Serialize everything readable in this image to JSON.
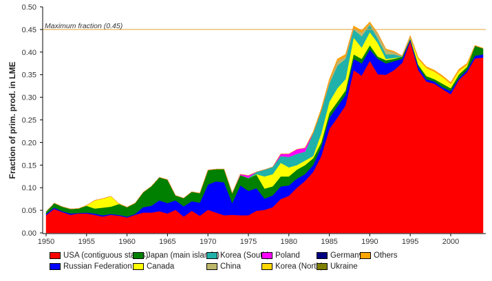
{
  "chart_data": {
    "type": "area",
    "stacked": true,
    "ylabel": "Fraction of prim. prod. in LME",
    "xlabel": "",
    "xlim": [
      1950,
      2004
    ],
    "ylim": [
      0,
      0.5
    ],
    "yticks": [
      "0.00",
      "0.05",
      "0.10",
      "0.15",
      "0.20",
      "0.25",
      "0.30",
      "0.35",
      "0.40",
      "0.45",
      "0.50"
    ],
    "xticks": [
      "1950",
      "1955",
      "1960",
      "1965",
      "1970",
      "1975",
      "1980",
      "1985",
      "1990",
      "1995",
      "2000"
    ],
    "grid": false,
    "legend_position": "bottom",
    "reference_line": {
      "value": 0.45,
      "label": "Maximum fraction (0.45)",
      "color": "#e0a030"
    },
    "x": [
      1950,
      1951,
      1952,
      1953,
      1954,
      1955,
      1956,
      1957,
      1958,
      1959,
      1960,
      1961,
      1962,
      1963,
      1964,
      1965,
      1966,
      1967,
      1968,
      1969,
      1970,
      1971,
      1972,
      1973,
      1974,
      1975,
      1976,
      1977,
      1978,
      1979,
      1980,
      1981,
      1982,
      1983,
      1984,
      1985,
      1986,
      1987,
      1988,
      1989,
      1990,
      1991,
      1992,
      1993,
      1994,
      1995,
      1996,
      1997,
      1998,
      1999,
      2000,
      2001,
      2002,
      2003,
      2004
    ],
    "series": [
      {
        "name": "USA (contiguous states)",
        "color": "#ff0000",
        "values": [
          0.039,
          0.053,
          0.046,
          0.04,
          0.043,
          0.043,
          0.04,
          0.036,
          0.04,
          0.038,
          0.034,
          0.04,
          0.045,
          0.045,
          0.048,
          0.043,
          0.051,
          0.036,
          0.049,
          0.038,
          0.051,
          0.045,
          0.039,
          0.04,
          0.039,
          0.039,
          0.049,
          0.051,
          0.057,
          0.075,
          0.082,
          0.1,
          0.115,
          0.135,
          0.17,
          0.23,
          0.255,
          0.282,
          0.36,
          0.348,
          0.381,
          0.351,
          0.35,
          0.36,
          0.376,
          0.424,
          0.36,
          0.335,
          0.33,
          0.318,
          0.307,
          0.338,
          0.355,
          0.386,
          0.388
        ]
      },
      {
        "name": "Russian Federation",
        "color": "#0000ff",
        "values": [
          0.003,
          0.003,
          0.002,
          0.003,
          0.001,
          0.002,
          0.003,
          0.003,
          0.002,
          0.002,
          0.002,
          0.002,
          0.012,
          0.015,
          0.024,
          0.023,
          0.021,
          0.023,
          0.021,
          0.029,
          0.056,
          0.069,
          0.073,
          0.026,
          0.066,
          0.054,
          0.05,
          0.025,
          0.026,
          0.028,
          0.023,
          0.02,
          0.015,
          0.015,
          0.02,
          0.025,
          0.025,
          0.023,
          0.025,
          0.027,
          0.025,
          0.034,
          0.025,
          0.02,
          0.009,
          0.004,
          0.008,
          0.005,
          0.005,
          0.004,
          0.007,
          0.004,
          0.005,
          0.006,
          0.007
        ]
      },
      {
        "name": "Japan (main islands)",
        "color": "#008000",
        "values": [
          0.005,
          0.01,
          0.01,
          0.01,
          0.01,
          0.015,
          0.011,
          0.017,
          0.016,
          0.024,
          0.021,
          0.024,
          0.033,
          0.043,
          0.051,
          0.052,
          0.011,
          0.018,
          0.021,
          0.021,
          0.032,
          0.027,
          0.029,
          0.022,
          0.023,
          0.028,
          0.03,
          0.022,
          0.02,
          0.022,
          0.02,
          0.02,
          0.02,
          0.015,
          0.01,
          0.01,
          0.01,
          0.01,
          0.01,
          0.01,
          0.009,
          0.005,
          0.007,
          0.005,
          0.005,
          0.002,
          0.004,
          0.007,
          0.005,
          0.008,
          0.006,
          0.008,
          0.007,
          0.022,
          0.013
        ]
      },
      {
        "name": "Canada",
        "color": "#ffff00",
        "values": [
          0,
          0,
          0,
          0,
          0,
          0.001,
          0.018,
          0.02,
          0.023,
          0.001,
          0,
          0,
          0,
          0,
          0,
          0,
          0,
          0,
          0,
          0,
          0,
          0,
          0,
          0,
          0,
          0,
          0.001,
          0.027,
          0.027,
          0.03,
          0.02,
          0.01,
          0.01,
          0.005,
          0.02,
          0.025,
          0.03,
          0.025,
          0.037,
          0.025,
          0.029,
          0.03,
          0.003,
          0.002,
          0,
          0.002,
          0.013,
          0.018,
          0.017,
          0.015,
          0.01,
          0.008,
          0.005,
          0,
          0
        ]
      },
      {
        "name": "Korea (South)",
        "color": "#20b2aa",
        "values": [
          0,
          0,
          0,
          0,
          0,
          0,
          0,
          0,
          0,
          0,
          0,
          0,
          0,
          0,
          0,
          0,
          0,
          0,
          0,
          0,
          0,
          0,
          0,
          0,
          0,
          0.001,
          0.005,
          0.015,
          0.016,
          0.015,
          0.023,
          0.025,
          0.02,
          0.051,
          0.05,
          0.04,
          0.05,
          0.045,
          0.018,
          0.025,
          0.016,
          0.01,
          0.01,
          0.008,
          0,
          0,
          0,
          0,
          0,
          0,
          0,
          0,
          0,
          0,
          0
        ]
      },
      {
        "name": "China",
        "color": "#bdb76b",
        "values": [
          0,
          0,
          0,
          0,
          0,
          0,
          0,
          0,
          0,
          0,
          0,
          0,
          0,
          0,
          0,
          0,
          0,
          0,
          0,
          0,
          0,
          0,
          0,
          0,
          0,
          0,
          0,
          0,
          0,
          0,
          0,
          0,
          0,
          0,
          0,
          0.005,
          0.01,
          0.005,
          0.004,
          0.008,
          0.004,
          0.01,
          0.01,
          0.005,
          0.002,
          0.003,
          0,
          0,
          0,
          0,
          0,
          0,
          0,
          0,
          0
        ]
      },
      {
        "name": "Poland",
        "color": "#ff00ff",
        "values": [
          0,
          0,
          0,
          0,
          0,
          0,
          0,
          0,
          0,
          0,
          0,
          0,
          0,
          0,
          0,
          0,
          0,
          0,
          0,
          0,
          0,
          0,
          0,
          0,
          0.002,
          0.005,
          0,
          0,
          0,
          0.005,
          0.007,
          0.01,
          0.008,
          0,
          0,
          0,
          0,
          0,
          0,
          0,
          0,
          0,
          0,
          0,
          0,
          0,
          0,
          0,
          0,
          0,
          0,
          0,
          0,
          0,
          0
        ]
      },
      {
        "name": "Korea (North)",
        "color": "#ffd700",
        "values": [
          0,
          0,
          0,
          0,
          0,
          0,
          0,
          0,
          0,
          0,
          0,
          0,
          0,
          0,
          0,
          0,
          0,
          0,
          0,
          0,
          0,
          0,
          0,
          0,
          0,
          0,
          0,
          0,
          0,
          0,
          0,
          0,
          0,
          0,
          0,
          0,
          0,
          0,
          0,
          0,
          0,
          0,
          0,
          0,
          0,
          0,
          0,
          0,
          0,
          0,
          0,
          0,
          0,
          0,
          0
        ]
      },
      {
        "name": "Germany",
        "color": "#000080",
        "values": [
          0,
          0,
          0,
          0,
          0,
          0,
          0,
          0,
          0,
          0,
          0,
          0,
          0,
          0,
          0,
          0,
          0,
          0,
          0,
          0,
          0,
          0,
          0,
          0,
          0,
          0,
          0,
          0,
          0,
          0,
          0,
          0,
          0,
          0,
          0,
          0,
          0,
          0,
          0,
          0,
          0,
          0,
          0,
          0,
          0,
          0,
          0,
          0,
          0,
          0,
          0,
          0,
          0,
          0,
          0
        ]
      },
      {
        "name": "Ukraine",
        "color": "#808000",
        "values": [
          0,
          0,
          0,
          0,
          0,
          0,
          0,
          0,
          0,
          0,
          0,
          0,
          0,
          0,
          0,
          0,
          0,
          0,
          0,
          0,
          0,
          0,
          0,
          0,
          0,
          0,
          0,
          0,
          0,
          0,
          0,
          0,
          0,
          0,
          0,
          0,
          0,
          0,
          0,
          0,
          0,
          0,
          0,
          0,
          0,
          0,
          0,
          0,
          0,
          0,
          0,
          0,
          0,
          0,
          0
        ]
      },
      {
        "name": "Others",
        "color": "#ffa500",
        "values": [
          0,
          0,
          0,
          0,
          0,
          0,
          0,
          0,
          0,
          0,
          0,
          0,
          0,
          0,
          0,
          0,
          0,
          0,
          0,
          0,
          0,
          0,
          0,
          0,
          0,
          0,
          0,
          0,
          0,
          0,
          0,
          0,
          0,
          0.003,
          0.005,
          0.005,
          0.005,
          0.005,
          0.004,
          0.005,
          0.003,
          0.002,
          0.002,
          0.002,
          0,
          0.002,
          0.003,
          0.003,
          0.003,
          0.003,
          0.003,
          0.004,
          0.003,
          0.001,
          0.001
        ]
      }
    ],
    "legend_order": [
      0,
      2,
      4,
      6,
      8,
      10,
      1,
      3,
      5,
      7,
      9
    ]
  }
}
